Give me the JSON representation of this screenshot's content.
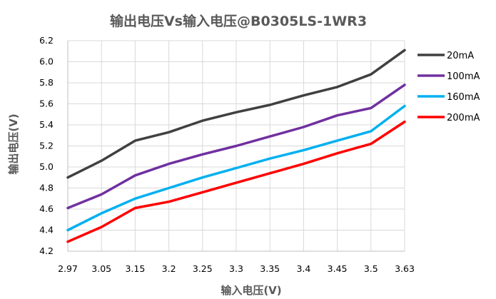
{
  "chart_data": {
    "type": "line",
    "title": "输出电压Vs输入电压@B0305LS-1WR3",
    "xlabel": "输入电压(V)",
    "ylabel": "输出电压(V)",
    "categories": [
      "2.97",
      "3.05",
      "3.15",
      "3.2",
      "3.25",
      "3.3",
      "3.35",
      "3.4",
      "3.45",
      "3.5",
      "3.63"
    ],
    "ylim": [
      4.2,
      6.2
    ],
    "yticks": [
      "4.2",
      "4.4",
      "4.6",
      "4.8",
      "5.0",
      "5.2",
      "5.4",
      "5.6",
      "5.8",
      "6.0",
      "6.2"
    ],
    "grid": true,
    "legend_position": "right",
    "series": [
      {
        "name": "20mA",
        "color": "#404040",
        "values": [
          4.9,
          5.06,
          5.25,
          5.33,
          5.44,
          5.52,
          5.59,
          5.68,
          5.76,
          5.88,
          6.11
        ]
      },
      {
        "name": "100mA",
        "color": "#7030a0",
        "values": [
          4.61,
          4.74,
          4.92,
          5.03,
          5.12,
          5.2,
          5.29,
          5.38,
          5.49,
          5.56,
          5.78
        ]
      },
      {
        "name": "160mA",
        "color": "#00b0f0",
        "values": [
          4.4,
          4.56,
          4.7,
          4.8,
          4.9,
          4.99,
          5.08,
          5.16,
          5.25,
          5.34,
          5.58
        ]
      },
      {
        "name": "200mA",
        "color": "#ff0000",
        "values": [
          4.29,
          4.43,
          4.61,
          4.67,
          4.76,
          4.85,
          4.94,
          5.03,
          5.13,
          5.22,
          5.43
        ]
      }
    ]
  }
}
